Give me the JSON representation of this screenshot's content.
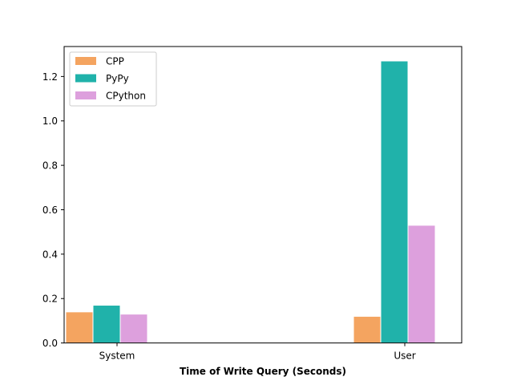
{
  "chart_data": {
    "type": "bar",
    "title": "",
    "xlabel": "Time of Write Query (Seconds)",
    "ylabel": "",
    "categories": [
      "System",
      "User"
    ],
    "series": [
      {
        "name": "CPP",
        "values": [
          0.14,
          0.12
        ],
        "color": "#f4a460"
      },
      {
        "name": "PyPy",
        "values": [
          0.17,
          1.27
        ],
        "color": "#20b2aa"
      },
      {
        "name": "CPython",
        "values": [
          0.13,
          0.53
        ],
        "color": "#dda0dd"
      }
    ],
    "ylim": [
      0,
      1.335
    ],
    "yticks": [
      "0.0",
      "0.2",
      "0.4",
      "0.6",
      "0.8",
      "1.0",
      "1.2"
    ],
    "grid": false,
    "legend": "top-left"
  }
}
